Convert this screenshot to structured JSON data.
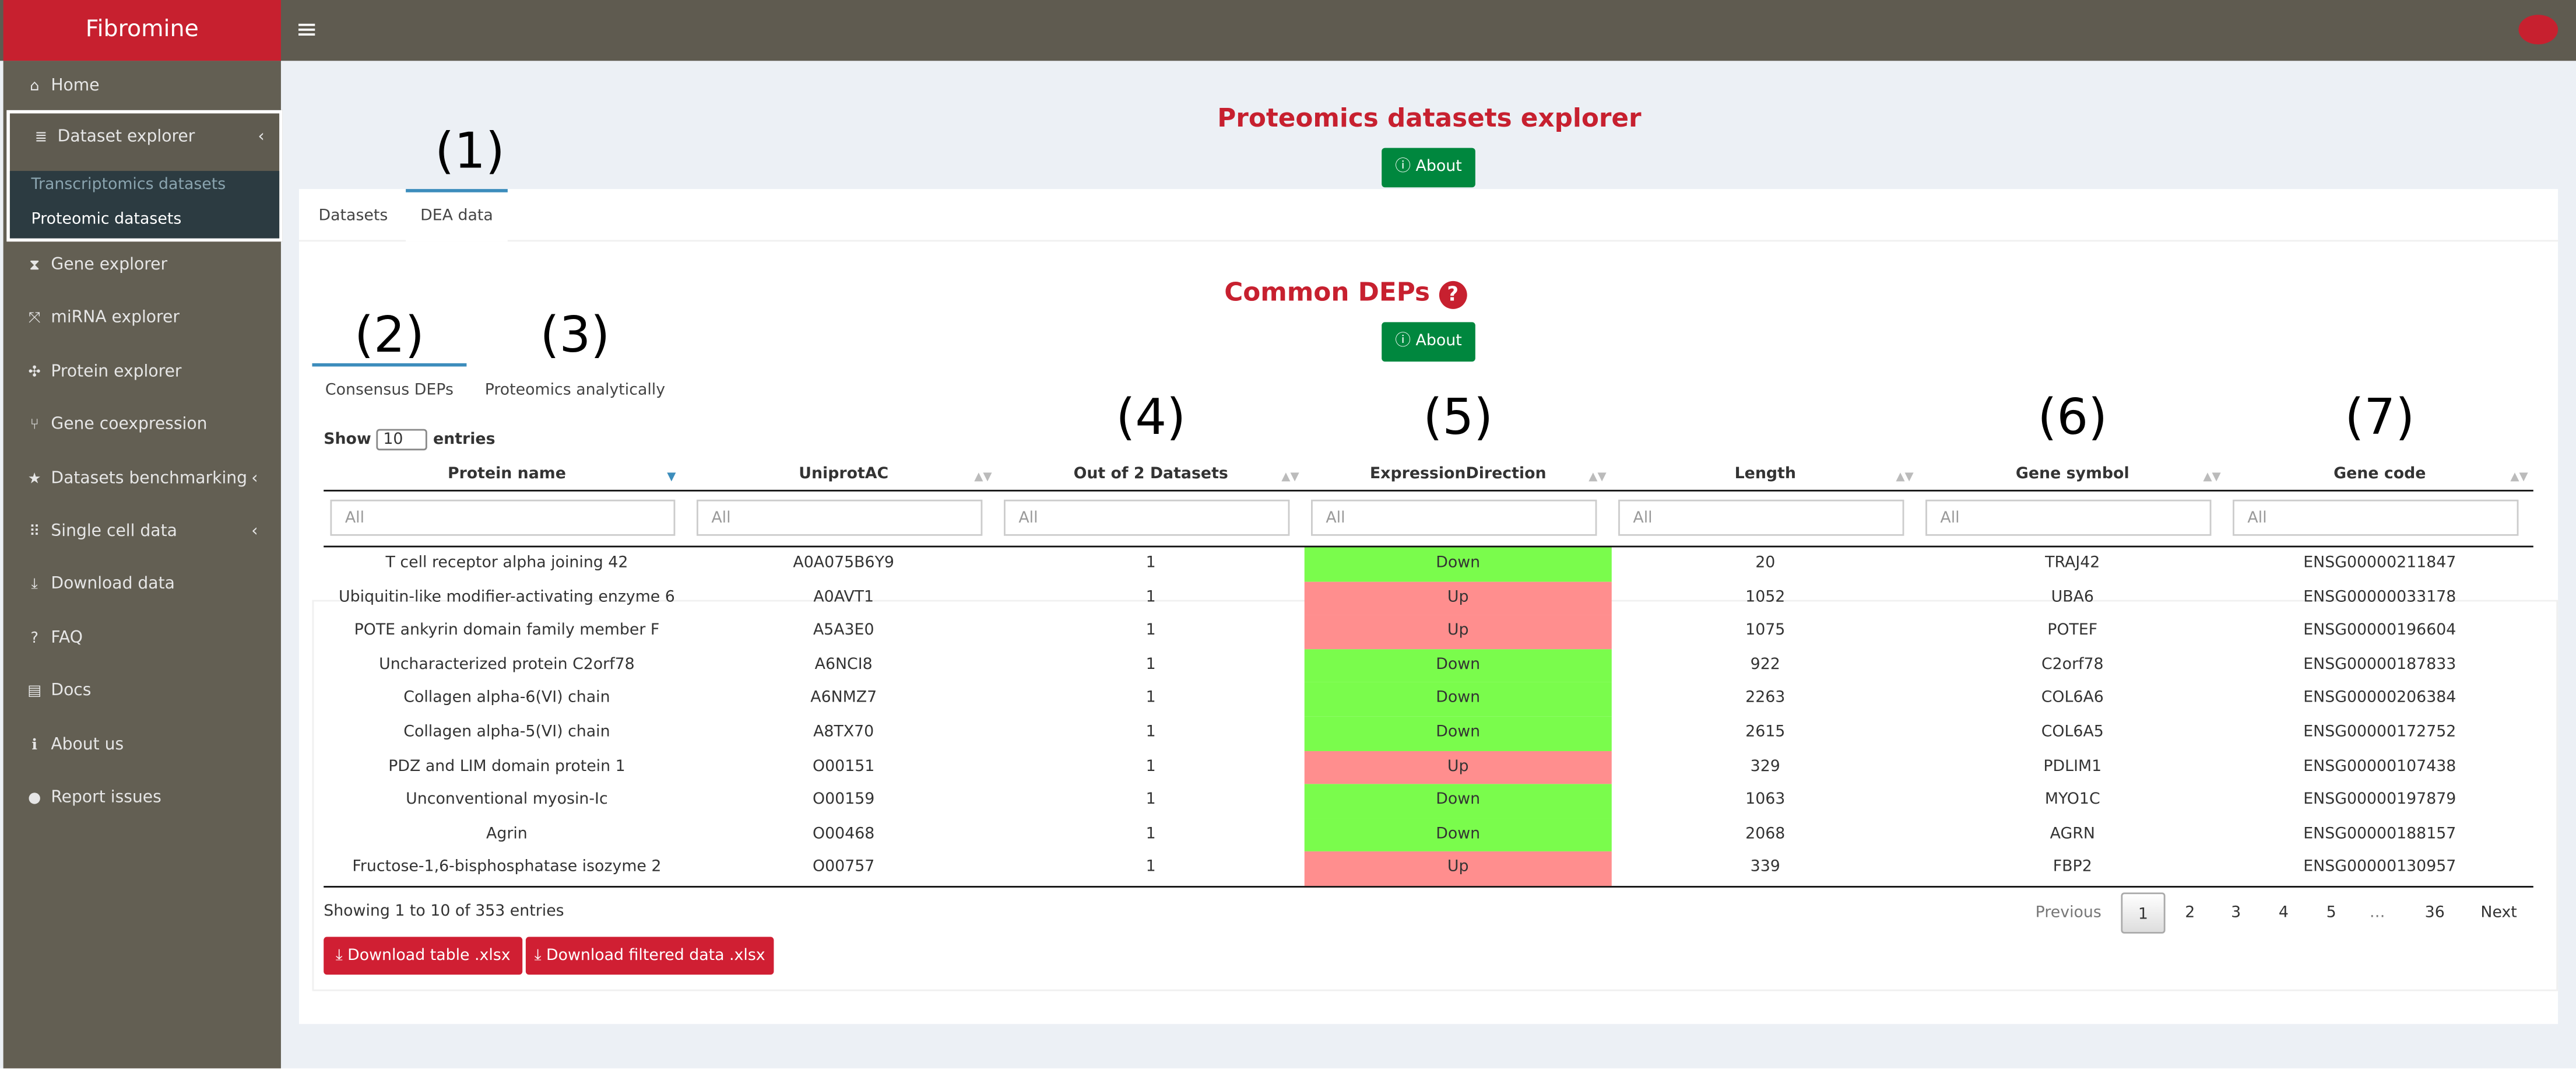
{
  "header": {
    "brand": "Fibromine",
    "menu_icon": "≡"
  },
  "sidebar": {
    "items": [
      {
        "icon": "⌂",
        "label": "Home"
      },
      {
        "icon": "≣",
        "label": "Dataset explorer",
        "chevron": "‹",
        "children": [
          "Transcriptomics datasets",
          "Proteomic datasets"
        ]
      },
      {
        "icon": "⧗",
        "label": "Gene explorer"
      },
      {
        "icon": "⤧",
        "label": "miRNA explorer"
      },
      {
        "icon": "✣",
        "label": "Protein explorer"
      },
      {
        "icon": "⑂",
        "label": "Gene coexpression"
      },
      {
        "icon": "★",
        "label": "Datasets benchmarking",
        "chevron": "‹"
      },
      {
        "icon": "⠿",
        "label": "Single cell data",
        "chevron": "‹"
      },
      {
        "icon": "⤓",
        "label": "Download data"
      },
      {
        "icon": "?",
        "label": "FAQ"
      },
      {
        "icon": "▤",
        "label": "Docs"
      },
      {
        "icon": "ℹ",
        "label": "About us"
      },
      {
        "icon": "●",
        "label": "Report issues"
      }
    ]
  },
  "page": {
    "title": "Proteomics datasets explorer",
    "about": "ⓘ About",
    "tabs": [
      "Datasets",
      "DEA data"
    ],
    "section_title": "Common DEPs",
    "section_icon": "?",
    "section_about": "ⓘ About",
    "subtabs": [
      "Consensus DEPs",
      "Proteomics analytically"
    ],
    "annotations": [
      "(1)",
      "(2)",
      "(3)",
      "(4)",
      "(5)",
      "(6)",
      "(7)"
    ],
    "show": "Show",
    "page_length": "10",
    "entries": "entries"
  },
  "table": {
    "columns": [
      "Protein name",
      "UniprotAC",
      "Out of 2 Datasets",
      "ExpressionDirection",
      "Length",
      "Gene symbol",
      "Gene code"
    ],
    "filter_placeholder": "All",
    "sort_icon": "▲▼",
    "sorted_icon": "▼",
    "expression_colors": {
      "Down": "#7afc4c",
      "Up": "#ff8e8e"
    },
    "rows": [
      [
        "T cell receptor alpha joining 42",
        "A0A075B6Y9",
        1,
        "Down",
        20,
        "TRAJ42",
        "ENSG00000211847"
      ],
      [
        "Ubiquitin-like modifier-activating enzyme 6",
        "A0AVT1",
        1,
        "Up",
        1052,
        "UBA6",
        "ENSG00000033178"
      ],
      [
        "POTE ankyrin domain family member F",
        "A5A3E0",
        1,
        "Up",
        1075,
        "POTEF",
        "ENSG00000196604"
      ],
      [
        "Uncharacterized protein C2orf78",
        "A6NCI8",
        1,
        "Down",
        922,
        "C2orf78",
        "ENSG00000187833"
      ],
      [
        "Collagen alpha-6(VI) chain",
        "A6NMZ7",
        1,
        "Down",
        2263,
        "COL6A6",
        "ENSG00000206384"
      ],
      [
        "Collagen alpha-5(VI) chain",
        "A8TX70",
        1,
        "Down",
        2615,
        "COL6A5",
        "ENSG00000172752"
      ],
      [
        "PDZ and LIM domain protein 1",
        "O00151",
        1,
        "Up",
        329,
        "PDLIM1",
        "ENSG00000107438"
      ],
      [
        "Unconventional myosin-Ic",
        "O00159",
        1,
        "Down",
        1063,
        "MYO1C",
        "ENSG00000197879"
      ],
      [
        "Agrin",
        "O00468",
        1,
        "Down",
        2068,
        "AGRN",
        "ENSG00000188157"
      ],
      [
        "Fructose-1,6-bisphosphatase isozyme 2",
        "O00757",
        1,
        "Up",
        339,
        "FBP2",
        "ENSG00000130957"
      ]
    ],
    "info": "Showing 1 to 10 of 353 entries",
    "pagination": [
      "Previous",
      "1",
      "2",
      "3",
      "4",
      "5",
      "…",
      "36",
      "Next"
    ]
  },
  "buttons": [
    "⤓ Download table .xlsx",
    "⤓ Download filtered data .xlsx"
  ]
}
